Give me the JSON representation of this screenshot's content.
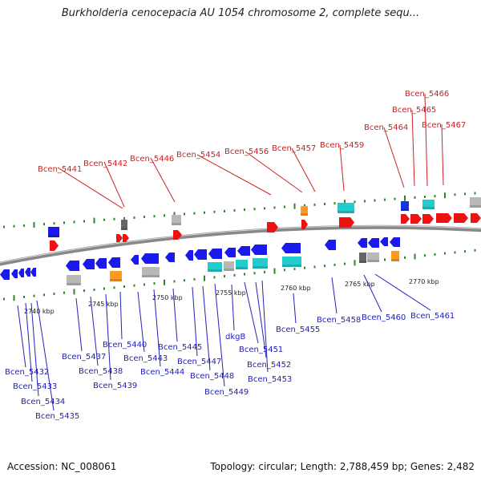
{
  "title": "Burkholderia cenocepacia AU 1054 chromosome 2, complete sequ...",
  "accession": "Accession: NC_008061",
  "topology": "Topology: circular; Length: 2,788,459 bp; Genes: 2,482",
  "colors": {
    "forward_gene": "#ee1111",
    "reverse_gene": "#1a1aee",
    "forward_label": "#cc2222",
    "reverse_label": "#2222bb",
    "backbone": "#888888",
    "dots": "#2a8a2a",
    "cyan": "#22cccc",
    "orange": "#ff9922",
    "gray": "#b8b8b8"
  },
  "scale_ticks": [
    "2740 kbp",
    "2745 kbp",
    "2750 kbp",
    "2755 kbp",
    "2760 kbp",
    "2765 kbp",
    "2770 kbp"
  ],
  "forward_labels": [
    "Bcen_5441",
    "Bcen_5442",
    "Bcen_5446",
    "Bcen_5454",
    "Bcen_5456",
    "Bcen_5457",
    "Bcen_5459",
    "Bcen_5464",
    "Bcen_5465",
    "Bcen_5466",
    "Bcen_5467"
  ],
  "reverse_labels": [
    "Bcen_5432",
    "Bcen_5433",
    "Bcen_5434",
    "Bcen_5435",
    "Bcen_5437",
    "Bcen_5438",
    "Bcen_5439",
    "Bcen_5440",
    "Bcen_5443",
    "Bcen_5444",
    "Bcen_5445",
    "Bcen_5447",
    "Bcen_5448",
    "Bcen_5449",
    "dkgB",
    "Bcen_5451",
    "Bcen_5452",
    "Bcen_5453",
    "Bcen_5455",
    "Bcen_5458",
    "Bcen_5460",
    "Bcen_5461"
  ]
}
